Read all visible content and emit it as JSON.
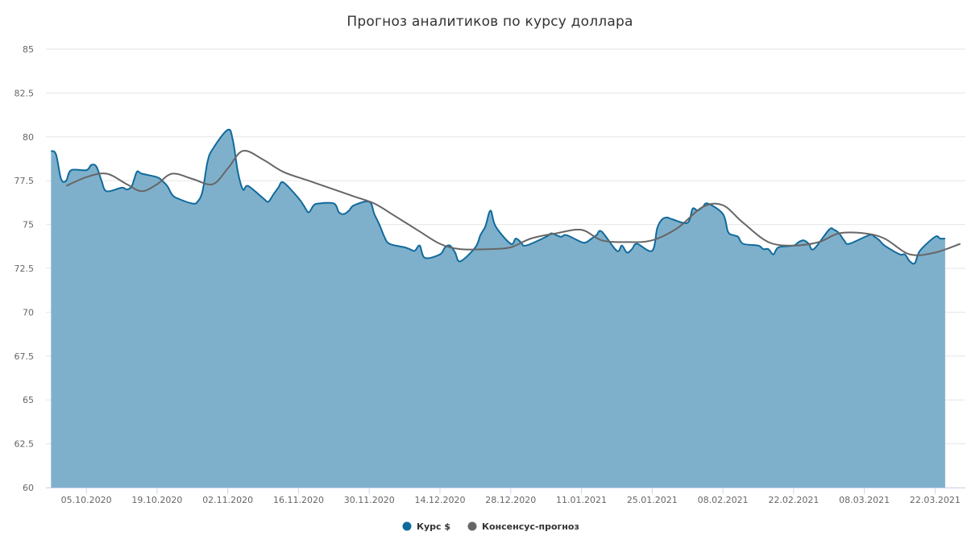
{
  "chart_data": {
    "type": "area",
    "title": "Прогноз аналитиков по курсу доллара",
    "xlabel": "",
    "ylabel": "",
    "ylim": [
      60,
      85
    ],
    "y_ticks": [
      "60",
      "62.5",
      "65",
      "67.5",
      "70",
      "72.5",
      "75",
      "77.5",
      "80",
      "82.5",
      "85"
    ],
    "x_ticks": [
      {
        "label": "05.10.2020",
        "date": "2020-10-05"
      },
      {
        "label": "19.10.2020",
        "date": "2020-10-19"
      },
      {
        "label": "02.11.2020",
        "date": "2020-11-02"
      },
      {
        "label": "16.11.2020",
        "date": "2020-11-16"
      },
      {
        "label": "30.11.2020",
        "date": "2020-11-30"
      },
      {
        "label": "14.12.2020",
        "date": "2020-12-14"
      },
      {
        "label": "28.12.2020",
        "date": "2020-12-28"
      },
      {
        "label": "11.01.2021",
        "date": "2021-01-11"
      },
      {
        "label": "25.01.2021",
        "date": "2021-01-25"
      },
      {
        "label": "08.02.2021",
        "date": "2021-02-08"
      },
      {
        "label": "22.02.2021",
        "date": "2021-02-22"
      },
      {
        "label": "08.03.2021",
        "date": "2021-03-08"
      },
      {
        "label": "22.03.2021",
        "date": "2021-03-22"
      }
    ],
    "x_range": [
      "2020-09-27",
      "2021-03-28"
    ],
    "grid": true,
    "legend_position": "bottom-center",
    "series": [
      {
        "name": "Курс $",
        "type": "area",
        "color": "#0f6a9c",
        "fill": "#7fb0cb",
        "x": [
          "2020-09-28",
          "2020-09-29",
          "2020-09-30",
          "2020-10-01",
          "2020-10-02",
          "2020-10-05",
          "2020-10-06",
          "2020-10-07",
          "2020-10-08",
          "2020-10-09",
          "2020-10-12",
          "2020-10-13",
          "2020-10-14",
          "2020-10-15",
          "2020-10-16",
          "2020-10-19",
          "2020-10-20",
          "2020-10-21",
          "2020-10-22",
          "2020-10-23",
          "2020-10-26",
          "2020-10-27",
          "2020-10-28",
          "2020-10-29",
          "2020-10-30",
          "2020-11-02",
          "2020-11-03",
          "2020-11-04",
          "2020-11-05",
          "2020-11-06",
          "2020-11-09",
          "2020-11-10",
          "2020-11-11",
          "2020-11-12",
          "2020-11-13",
          "2020-11-16",
          "2020-11-17",
          "2020-11-18",
          "2020-11-19",
          "2020-11-20",
          "2020-11-23",
          "2020-11-24",
          "2020-11-25",
          "2020-11-26",
          "2020-11-27",
          "2020-11-30",
          "2020-12-01",
          "2020-12-02",
          "2020-12-03",
          "2020-12-04",
          "2020-12-07",
          "2020-12-08",
          "2020-12-09",
          "2020-12-10",
          "2020-12-11",
          "2020-12-14",
          "2020-12-15",
          "2020-12-16",
          "2020-12-17",
          "2020-12-18",
          "2020-12-21",
          "2020-12-22",
          "2020-12-23",
          "2020-12-24",
          "2020-12-25",
          "2020-12-28",
          "2020-12-29",
          "2020-12-30",
          "2020-12-31",
          "2021-01-04",
          "2021-01-05",
          "2021-01-06",
          "2021-01-07",
          "2021-01-08",
          "2021-01-11",
          "2021-01-12",
          "2021-01-13",
          "2021-01-14",
          "2021-01-15",
          "2021-01-18",
          "2021-01-19",
          "2021-01-20",
          "2021-01-21",
          "2021-01-22",
          "2021-01-25",
          "2021-01-26",
          "2021-01-27",
          "2021-01-28",
          "2021-01-29",
          "2021-02-01",
          "2021-02-02",
          "2021-02-03",
          "2021-02-04",
          "2021-02-05",
          "2021-02-08",
          "2021-02-09",
          "2021-02-10",
          "2021-02-11",
          "2021-02-12",
          "2021-02-15",
          "2021-02-16",
          "2021-02-17",
          "2021-02-18",
          "2021-02-19",
          "2021-02-22",
          "2021-02-23",
          "2021-02-24",
          "2021-02-25",
          "2021-02-26",
          "2021-03-01",
          "2021-03-02",
          "2021-03-03",
          "2021-03-04",
          "2021-03-05",
          "2021-03-09",
          "2021-03-10",
          "2021-03-11",
          "2021-03-12",
          "2021-03-15",
          "2021-03-16",
          "2021-03-17",
          "2021-03-18",
          "2021-03-19",
          "2021-03-22",
          "2021-03-23",
          "2021-03-24"
        ],
        "values": [
          79.2,
          79.0,
          77.6,
          77.5,
          78.1,
          78.1,
          78.4,
          78.3,
          77.5,
          76.9,
          77.1,
          77.0,
          77.2,
          78.0,
          77.9,
          77.7,
          77.5,
          77.2,
          76.7,
          76.5,
          76.2,
          76.3,
          76.9,
          78.6,
          79.3,
          80.4,
          79.8,
          78.0,
          77.0,
          77.2,
          76.5,
          76.3,
          76.7,
          77.1,
          77.4,
          76.5,
          76.1,
          75.7,
          76.1,
          76.2,
          76.2,
          75.7,
          75.6,
          75.8,
          76.1,
          76.3,
          75.6,
          75.0,
          74.3,
          73.9,
          73.7,
          73.6,
          73.5,
          73.8,
          73.1,
          73.3,
          73.7,
          73.8,
          73.4,
          72.9,
          73.7,
          74.4,
          74.9,
          75.8,
          74.9,
          73.9,
          74.2,
          74.0,
          73.8,
          74.3,
          74.5,
          74.4,
          74.3,
          74.4,
          74.0,
          74.0,
          74.2,
          74.4,
          74.6,
          73.5,
          73.8,
          73.4,
          73.6,
          73.9,
          73.5,
          74.8,
          75.3,
          75.4,
          75.3,
          75.1,
          75.9,
          75.8,
          76.0,
          76.2,
          75.6,
          74.6,
          74.4,
          74.3,
          73.9,
          73.8,
          73.6,
          73.6,
          73.3,
          73.7,
          73.8,
          74.0,
          74.1,
          73.9,
          73.6,
          74.7,
          74.7,
          74.5,
          74.1,
          73.9,
          74.4,
          74.3,
          74.1,
          73.8,
          73.3,
          73.3,
          72.9,
          72.8,
          73.5,
          74.3,
          74.2,
          74.2
        ]
      },
      {
        "name": "Консенсус-прогноз",
        "type": "line",
        "color": "#666666",
        "x": [
          "2020-10-01",
          "2020-10-05",
          "2020-10-09",
          "2020-10-13",
          "2020-10-16",
          "2020-10-19",
          "2020-10-22",
          "2020-10-26",
          "2020-10-30",
          "2020-11-02",
          "2020-11-05",
          "2020-11-09",
          "2020-11-13",
          "2020-11-18",
          "2020-11-23",
          "2020-11-27",
          "2020-12-01",
          "2020-12-05",
          "2020-12-10",
          "2020-12-14",
          "2020-12-18",
          "2020-12-24",
          "2020-12-28",
          "2021-01-01",
          "2021-01-06",
          "2021-01-11",
          "2021-01-15",
          "2021-01-20",
          "2021-01-25",
          "2021-01-30",
          "2021-02-04",
          "2021-02-08",
          "2021-02-12",
          "2021-02-17",
          "2021-02-22",
          "2021-02-27",
          "2021-03-03",
          "2021-03-08",
          "2021-03-12",
          "2021-03-17",
          "2021-03-22",
          "2021-03-27"
        ],
        "values": [
          77.2,
          77.7,
          77.9,
          77.3,
          76.9,
          77.3,
          77.9,
          77.6,
          77.3,
          78.2,
          79.2,
          78.7,
          78.0,
          77.5,
          77.0,
          76.6,
          76.2,
          75.5,
          74.6,
          73.9,
          73.6,
          73.6,
          73.7,
          74.2,
          74.5,
          74.7,
          74.1,
          74.0,
          74.1,
          74.8,
          76.0,
          76.1,
          75.1,
          74.0,
          73.8,
          74.0,
          74.5,
          74.5,
          74.2,
          73.3,
          73.4,
          73.9
        ]
      }
    ]
  }
}
